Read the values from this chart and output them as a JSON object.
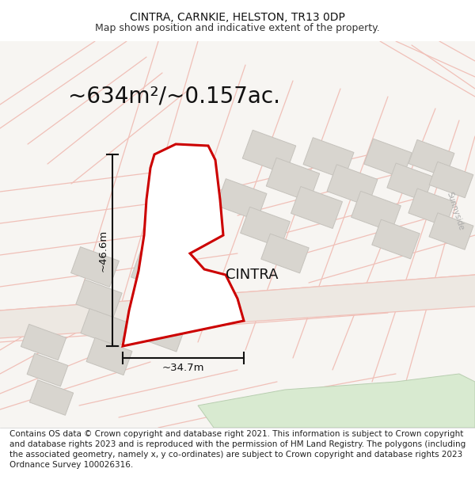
{
  "title": "CINTRA, CARNKIE, HELSTON, TR13 0DP",
  "subtitle": "Map shows position and indicative extent of the property.",
  "area_label": "~634m²/~0.157ac.",
  "property_name": "CINTRA",
  "width_label": "~34.7m",
  "height_label": "~46.6m",
  "footer": "Contains OS data © Crown copyright and database right 2021. This information is subject to Crown copyright and database rights 2023 and is reproduced with the permission of HM Land Registry. The polygons (including the associated geometry, namely x, y co-ordinates) are subject to Crown copyright and database rights 2023 Ordnance Survey 100026316.",
  "bg_color": "#ffffff",
  "map_bg": "#f7f5f2",
  "building_color": "#d8d5cf",
  "building_edge": "#c5c2bc",
  "plot_outline_color": "#cc0000",
  "plot_fill_color": "#ffffff",
  "street_line_color": "#f0c0b8",
  "road_fill": "#ede8e2",
  "green_area": "#d8ead0",
  "green_edge": "#b8ceb0",
  "dim_line_color": "#111111",
  "sunnyside_color": "#aaaaaa",
  "title_fontsize": 10,
  "subtitle_fontsize": 9,
  "area_fontsize": 20,
  "property_fontsize": 13,
  "dim_fontsize": 9.5,
  "footer_fontsize": 7.5,
  "sunnyside_fontsize": 7
}
